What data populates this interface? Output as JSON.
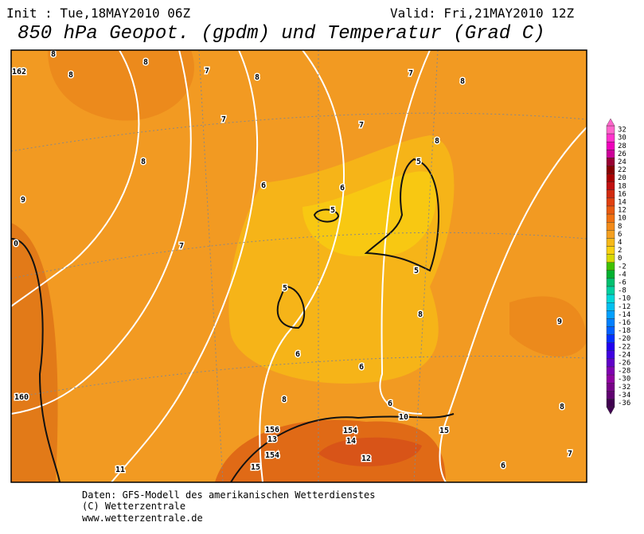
{
  "header": {
    "init": "Init : Tue,18MAY2010 06Z",
    "valid": "Valid: Fri,21MAY2010 12Z",
    "title": "850 hPa Geopot. (gpdm) und Temperatur (Grad C)"
  },
  "map": {
    "labels": [
      "8",
      "8",
      "162",
      "8",
      "7",
      "8",
      "7",
      "8",
      "7",
      "7",
      "8",
      "8",
      "5",
      "6",
      "6",
      "9",
      "5",
      "0",
      "7",
      "5",
      "5",
      "8",
      "9",
      "6",
      "6",
      "160",
      "8",
      "6",
      "10",
      "8",
      "156",
      "154",
      "14",
      "13",
      "15",
      "154",
      "12",
      "15",
      "11",
      "6",
      "7"
    ]
  },
  "legend": {
    "items": [
      {
        "value": 32,
        "color": "#ff66cc"
      },
      {
        "value": 30,
        "color": "#ff33cc"
      },
      {
        "value": 28,
        "color": "#ee00bb"
      },
      {
        "value": 26,
        "color": "#cc0099"
      },
      {
        "value": 24,
        "color": "#990033"
      },
      {
        "value": 22,
        "color": "#880000"
      },
      {
        "value": 20,
        "color": "#aa0000"
      },
      {
        "value": 18,
        "color": "#c01010"
      },
      {
        "value": 16,
        "color": "#d02a10"
      },
      {
        "value": 14,
        "color": "#e04010"
      },
      {
        "value": 12,
        "color": "#e85a10"
      },
      {
        "value": 10,
        "color": "#f07010"
      },
      {
        "value": 8,
        "color": "#f28a18"
      },
      {
        "value": 6,
        "color": "#f4a020"
      },
      {
        "value": 4,
        "color": "#f6b818"
      },
      {
        "value": 2,
        "color": "#f8d010"
      },
      {
        "value": 0,
        "color": "#d8d800"
      },
      {
        "value": -2,
        "color": "#40c000"
      },
      {
        "value": -4,
        "color": "#00b030"
      },
      {
        "value": -6,
        "color": "#00c070"
      },
      {
        "value": -8,
        "color": "#00d0a0"
      },
      {
        "value": -10,
        "color": "#00d8d8"
      },
      {
        "value": -12,
        "color": "#00c0f0"
      },
      {
        "value": -14,
        "color": "#00a0ff"
      },
      {
        "value": -16,
        "color": "#0080ff"
      },
      {
        "value": -18,
        "color": "#0060ff"
      },
      {
        "value": -20,
        "color": "#0030ff"
      },
      {
        "value": -22,
        "color": "#2000f0"
      },
      {
        "value": -24,
        "color": "#4000e0"
      },
      {
        "value": -26,
        "color": "#6000c8"
      },
      {
        "value": -28,
        "color": "#8000b0"
      },
      {
        "value": -30,
        "color": "#9000a0"
      },
      {
        "value": -32,
        "color": "#780088"
      },
      {
        "value": -34,
        "color": "#600070"
      },
      {
        "value": -36,
        "color": "#400050"
      }
    ]
  },
  "footer": {
    "lines": [
      "Daten: GFS-Modell des amerikanischen Wetterdienstes",
      "(C) Wetterzentrale",
      "www.wetterzentrale.de"
    ]
  }
}
